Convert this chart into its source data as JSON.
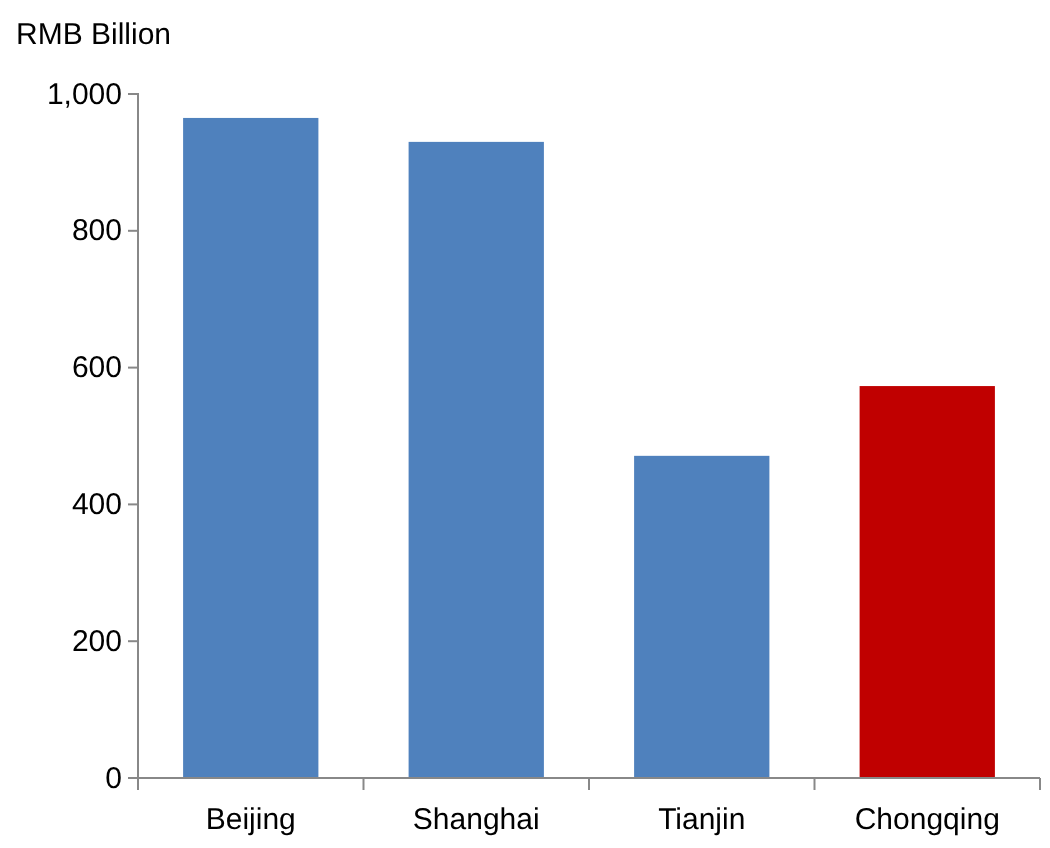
{
  "chart_data": {
    "type": "bar",
    "ylabel": "RMB Billion",
    "categories": [
      "Beijing",
      "Shanghai",
      "Tianjin",
      "Chongqing"
    ],
    "values": [
      965,
      930,
      471,
      573
    ],
    "colors": [
      "#4f81bd",
      "#4f81bd",
      "#4f81bd",
      "#c00000"
    ],
    "ylim": [
      0,
      1000
    ],
    "yticks": [
      0,
      200,
      400,
      600,
      800,
      {
        "value": 1000,
        "label": "1,000"
      }
    ],
    "grid": false
  }
}
